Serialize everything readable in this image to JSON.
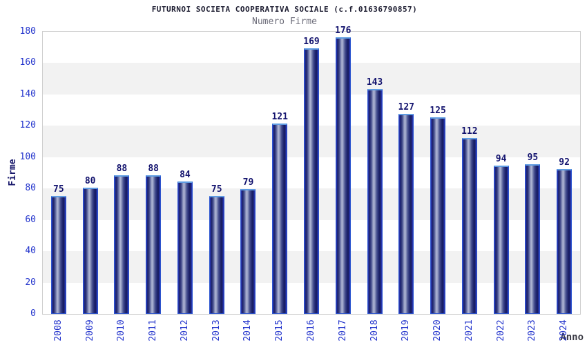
{
  "chart_data": {
    "type": "bar",
    "title": "FUTURNOI SOCIETA COOPERATIVA SOCIALE (c.f.01636790857)",
    "subtitle": "Numero Firme",
    "xlabel": "Anno",
    "ylabel": "Firme",
    "categories": [
      "2008",
      "2009",
      "2010",
      "2011",
      "2012",
      "2013",
      "2014",
      "2015",
      "2016",
      "2017",
      "2018",
      "2019",
      "2020",
      "2021",
      "2022",
      "2023",
      "2024"
    ],
    "values": [
      75,
      80,
      88,
      88,
      84,
      75,
      79,
      121,
      169,
      176,
      143,
      127,
      125,
      112,
      94,
      95,
      92
    ],
    "ylim": [
      0,
      180
    ],
    "ytick_step": 20,
    "yticks": [
      0,
      20,
      40,
      60,
      80,
      100,
      120,
      140,
      160,
      180
    ],
    "grid": "alternating-horizontal-bands",
    "legend": "none",
    "bar_value_labels": true,
    "colors": {
      "tick_label": "#2233cc",
      "value_label": "#13136e",
      "title": "#1c1c30",
      "subtitle": "#6b6b78",
      "axis_label": "#16166a",
      "xlabel_color": "#3c3c46",
      "band_gray": "#f2f2f2",
      "plot_border": "#cfcfcf",
      "bar_border": "#2c55cf",
      "bar_top_cap": "#5f9ce2",
      "bar_dark": "#171b5c",
      "bar_highlight": "#b2b8d6"
    }
  }
}
